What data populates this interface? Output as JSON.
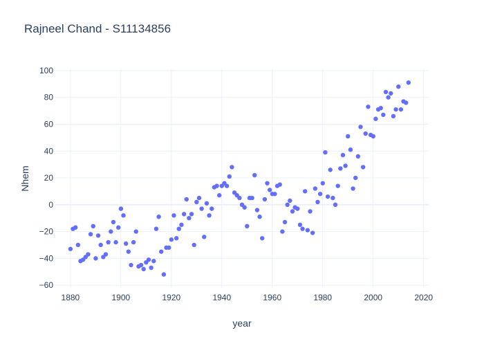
{
  "chart_data": {
    "type": "scatter",
    "title": "Rajneel Chand - S11134856",
    "xlabel": "year",
    "ylabel": "Nhem",
    "xlim": [
      1874,
      2022
    ],
    "ylim": [
      -62,
      101
    ],
    "xticks": [
      1880,
      1900,
      1920,
      1940,
      1960,
      1980,
      2000,
      2020
    ],
    "yticks": [
      -60,
      -40,
      -20,
      0,
      20,
      40,
      60,
      80,
      100
    ],
    "grid": true,
    "marker_color": "#636efa",
    "series": [
      {
        "x": [
          1880,
          1881,
          1882,
          1883,
          1884,
          1885,
          1886,
          1887,
          1888,
          1889,
          1890,
          1891,
          1892,
          1893,
          1894,
          1895,
          1896,
          1897,
          1898,
          1899,
          1900,
          1901,
          1902,
          1903,
          1904,
          1905,
          1906,
          1907,
          1908,
          1909,
          1910,
          1911,
          1912,
          1913,
          1914,
          1915,
          1916,
          1917,
          1918,
          1919,
          1920,
          1921,
          1922,
          1923,
          1924,
          1925,
          1926,
          1927,
          1928,
          1929,
          1930,
          1931,
          1932,
          1933,
          1934,
          1935,
          1936,
          1937,
          1938,
          1939,
          1940,
          1941,
          1942,
          1943,
          1944,
          1945,
          1946,
          1947,
          1948,
          1949,
          1950,
          1951,
          1952,
          1953,
          1954,
          1955,
          1956,
          1957,
          1958,
          1959,
          1960,
          1961,
          1962,
          1963,
          1964,
          1965,
          1966,
          1967,
          1968,
          1969,
          1970,
          1971,
          1972,
          1973,
          1974,
          1975,
          1976,
          1977,
          1978,
          1979,
          1980,
          1981,
          1982,
          1983,
          1984,
          1985,
          1986,
          1987,
          1988,
          1989,
          1990,
          1991,
          1992,
          1993,
          1994,
          1995,
          1996,
          1997,
          1998,
          1999,
          2000,
          2001,
          2002,
          2003,
          2004,
          2005,
          2006,
          2007,
          2008,
          2009,
          2010,
          2011,
          2012,
          2013,
          2014
        ],
        "y": [
          -33,
          -18,
          -17,
          -30,
          -42,
          -41,
          -39,
          -37,
          -22,
          -16,
          -40,
          -23,
          -30,
          -39,
          -37,
          -28,
          -20,
          -13,
          -28,
          -17,
          -3,
          -8,
          -29,
          -35,
          -45,
          -28,
          -20,
          -46,
          -45,
          -48,
          -43,
          -41,
          -47,
          -42,
          -18,
          -9,
          -35,
          -52,
          -32,
          -32,
          -26,
          -8,
          -25,
          -18,
          -15,
          -7,
          4,
          -10,
          -7,
          -30,
          2,
          5,
          -3,
          -24,
          1,
          -8,
          -3,
          13,
          14,
          7,
          14,
          16,
          14,
          21,
          28,
          9,
          7,
          5,
          0,
          -2,
          -16,
          5,
          5,
          22,
          -4,
          -9,
          -25,
          4,
          16,
          11,
          8,
          8,
          14,
          15,
          -20,
          -13,
          0,
          3,
          -5,
          -2,
          -3,
          -15,
          -18,
          10,
          -19,
          -5,
          -21,
          12,
          2,
          8,
          16,
          39,
          6,
          26,
          5,
          0,
          14,
          27,
          37,
          29,
          51,
          41,
          12,
          20,
          36,
          58,
          28,
          53,
          73,
          52,
          51,
          64,
          71,
          72,
          67,
          84,
          80,
          83,
          66,
          71,
          88,
          71,
          77,
          76,
          91
        ]
      }
    ]
  }
}
